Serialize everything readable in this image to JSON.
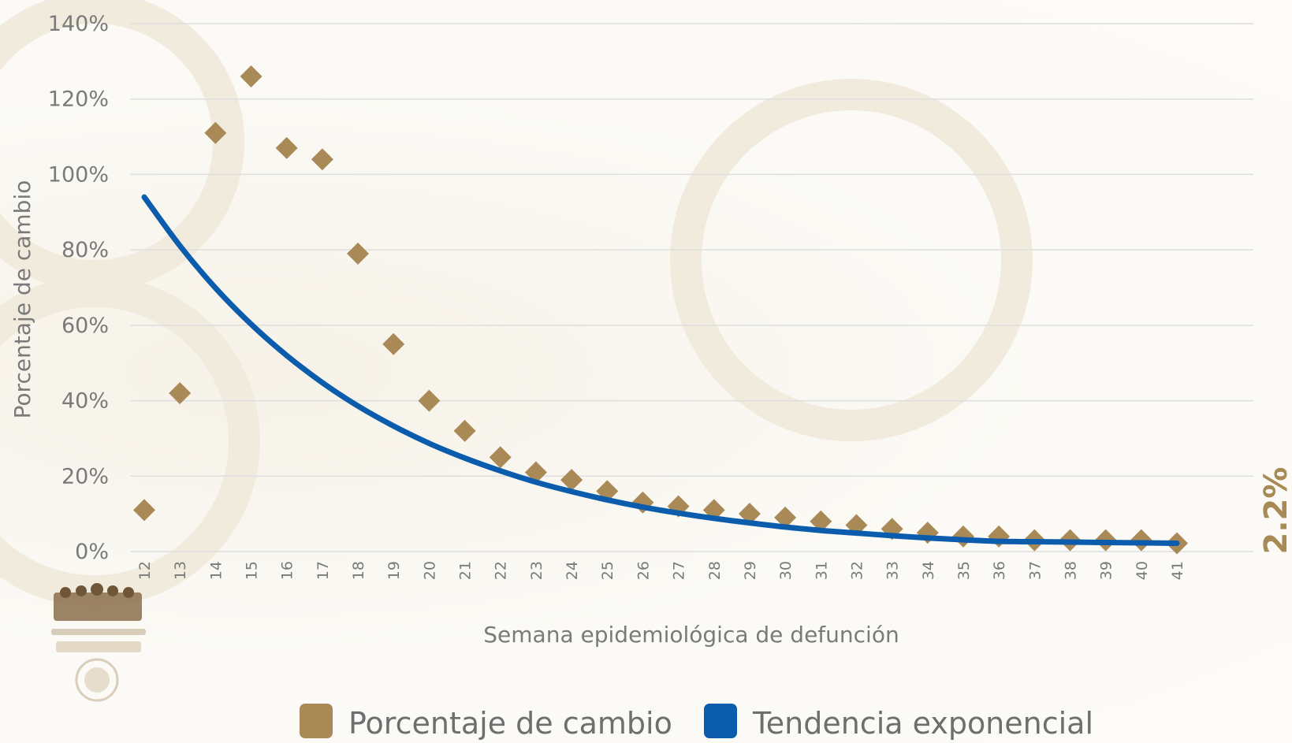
{
  "chart_data": {
    "type": "scatter",
    "xlabel": "Semana epidemiológica de defunción",
    "ylabel": "Porcentaje de cambio",
    "ylim": [
      0,
      140
    ],
    "yticks": [
      "0%",
      "20%",
      "40%",
      "60%",
      "80%",
      "100%",
      "120%",
      "140%"
    ],
    "x": [
      12,
      13,
      14,
      15,
      16,
      17,
      18,
      19,
      20,
      21,
      22,
      23,
      24,
      25,
      26,
      27,
      28,
      29,
      30,
      31,
      32,
      33,
      34,
      35,
      36,
      37,
      38,
      39,
      40,
      41
    ],
    "series": [
      {
        "name": "Porcentaje de cambio",
        "kind": "scatter",
        "marker": "diamond",
        "color": "#a98a57",
        "values": [
          11,
          42,
          111,
          126,
          107,
          104,
          79,
          55,
          40,
          32,
          25,
          21,
          19,
          16,
          13,
          12,
          11,
          10,
          9,
          8,
          7,
          6,
          5,
          4,
          4,
          3,
          3,
          3,
          3,
          2.2
        ]
      },
      {
        "name": "Tendencia exponencial",
        "kind": "line",
        "color": "#0b5cad",
        "values": [
          94,
          81.1,
          69.9,
          60.3,
          52.0,
          44.8,
          38.6,
          33.3,
          28.7,
          24.8,
          21.4,
          18.4,
          15.9,
          13.7,
          11.8,
          10.2,
          8.8,
          7.6,
          6.5,
          5.6,
          4.9,
          4.2,
          3.6,
          3.1,
          2.7,
          2.6,
          2.5,
          2.4,
          2.3,
          2.2
        ]
      }
    ],
    "callout": "2.2%",
    "grid": true,
    "legend_position": "bottom"
  }
}
